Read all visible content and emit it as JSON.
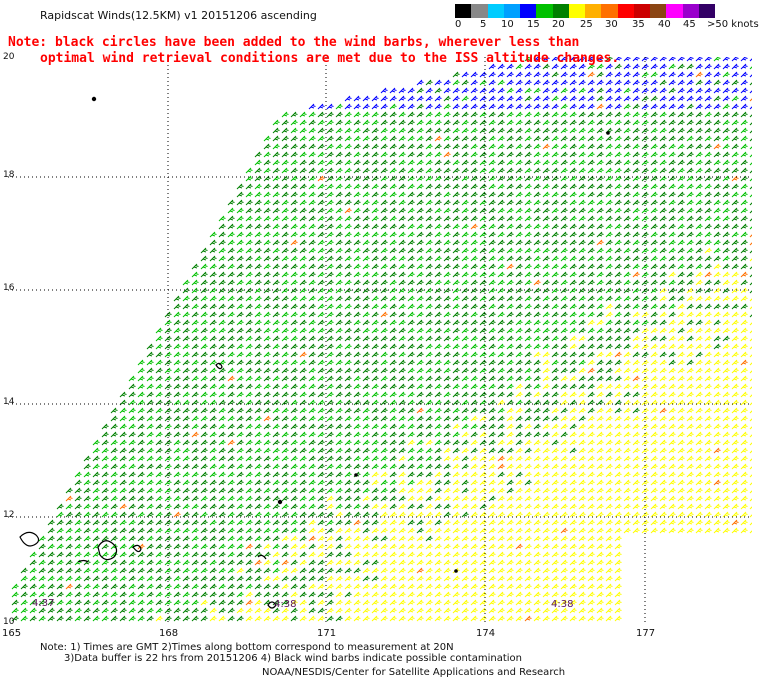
{
  "header": {
    "title": "Rapidscat Winds(12.5KM) v1 20151206 ascending",
    "note_line1": "Note: black circles have been added to the wind barbs, wherever less than",
    "note_line2": "optimal wind retrieval conditions are met due to the ISS altitude changes."
  },
  "legend": {
    "colors": [
      "#000000",
      "#888888",
      "#00ccff",
      "#00a0ff",
      "#0000ff",
      "#00c000",
      "#008000",
      "#ffff00",
      "#ffb000",
      "#ff7000",
      "#ff0000",
      "#cc0000",
      "#8b4513",
      "#ff00ff",
      "#9900cc",
      "#330066"
    ],
    "labels": [
      "0",
      "5",
      "10",
      "15",
      "20",
      "25",
      "30",
      "35",
      "40",
      "45",
      ">50 knots"
    ]
  },
  "axes": {
    "y_ticks": [
      "20",
      "18",
      "16",
      "14",
      "12",
      "10"
    ],
    "x_ticks": [
      "165",
      "168",
      "171",
      "174",
      "177"
    ]
  },
  "time_labels": [
    "4:37",
    "4:38",
    "4:38"
  ],
  "footer": {
    "line1": "Note: 1) Times are GMT 2)Times along bottom correspond to measurement at 20N",
    "line2": "3)Data buffer is 22 hrs from 20151206 4) Black wind barbs indicate possible contamination",
    "credit": "NOAA/NESDIS/Center for Satellite Applications and Research"
  }
}
